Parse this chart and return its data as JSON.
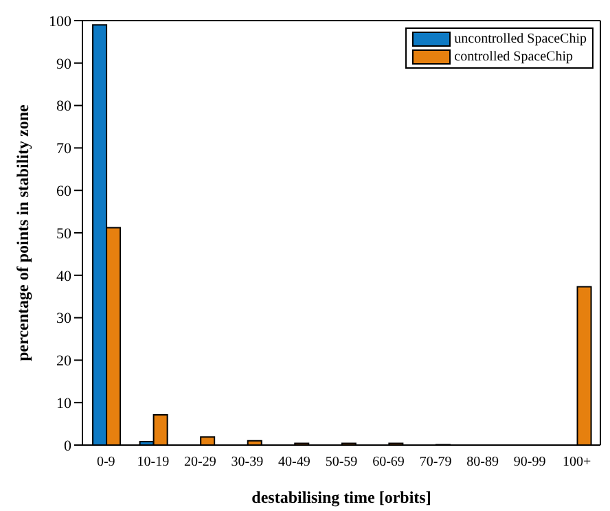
{
  "chart_data": {
    "type": "bar",
    "xlabel": "destabilising time [orbits]",
    "ylabel": "percentage of points in stability zone",
    "categories": [
      "0-9",
      "10-19",
      "20-29",
      "30-39",
      "40-49",
      "50-59",
      "60-69",
      "70-79",
      "80-89",
      "90-99",
      "100+"
    ],
    "series": [
      {
        "name": "uncontrolled SpaceChip",
        "color": "#0e7ac4",
        "values": [
          99,
          0.8,
          0,
          0,
          0,
          0,
          0,
          0,
          0,
          0,
          0
        ]
      },
      {
        "name": "controlled SpaceChip",
        "color": "#e6800f",
        "values": [
          51.2,
          7.1,
          1.9,
          1,
          0.4,
          0.4,
          0.4,
          0.1,
          0,
          0,
          37.3
        ]
      }
    ],
    "ylim": [
      0,
      100
    ],
    "yticks": [
      0,
      10,
      20,
      30,
      40,
      50,
      60,
      70,
      80,
      90,
      100
    ],
    "grid": false,
    "legend": "top right"
  }
}
